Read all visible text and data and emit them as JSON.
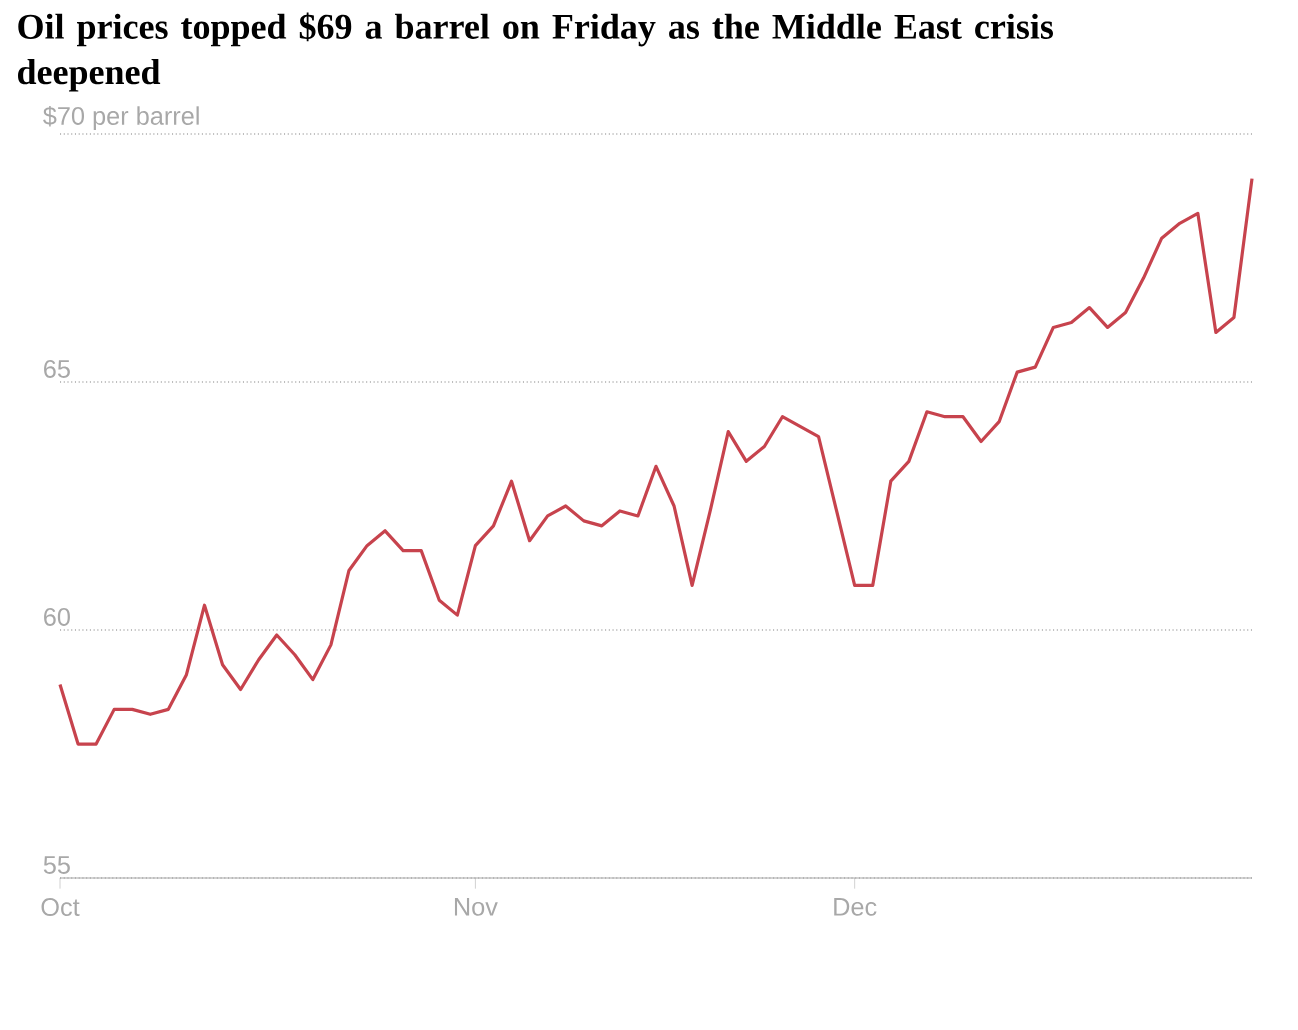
{
  "chart_data": {
    "type": "line",
    "title": "Oil prices topped $69 a barrel on Friday as the Middle East crisis deepened",
    "categories": [
      "Oct",
      null,
      null,
      null,
      null,
      null,
      null,
      null,
      null,
      null,
      null,
      null,
      null,
      null,
      null,
      null,
      null,
      null,
      null,
      null,
      null,
      null,
      null,
      "Nov",
      null,
      null,
      null,
      null,
      null,
      null,
      null,
      null,
      null,
      null,
      null,
      null,
      null,
      null,
      null,
      null,
      null,
      null,
      null,
      null,
      "Dec",
      null,
      null,
      null,
      null,
      null,
      null,
      null,
      null,
      null,
      null,
      null,
      null,
      null,
      null,
      null,
      null,
      null,
      null,
      null,
      null,
      null,
      null
    ],
    "values": [
      58.9,
      57.7,
      57.7,
      58.4,
      58.4,
      58.3,
      58.4,
      59.1,
      60.5,
      59.3,
      58.8,
      59.4,
      59.9,
      59.5,
      59.0,
      59.7,
      61.2,
      61.7,
      62.0,
      61.6,
      61.6,
      60.6,
      60.3,
      61.7,
      62.1,
      63.0,
      61.8,
      62.3,
      62.5,
      62.2,
      62.1,
      62.4,
      62.3,
      63.3,
      62.5,
      60.9,
      62.4,
      64.0,
      63.4,
      63.7,
      64.3,
      64.1,
      63.9,
      62.4,
      60.9,
      60.9,
      63.0,
      63.4,
      64.4,
      64.3,
      64.3,
      63.8,
      64.2,
      65.2,
      65.3,
      66.1,
      66.2,
      66.5,
      66.1,
      66.4,
      67.1,
      67.9,
      68.2,
      68.4,
      66.0,
      66.3,
      69.1
    ],
    "color": "#c7434d",
    "ylim": [
      55,
      70
    ],
    "yticks": [
      55,
      60,
      65,
      {
        "value": 70,
        "label": "$70 per barrel"
      }
    ],
    "grid": "y"
  }
}
